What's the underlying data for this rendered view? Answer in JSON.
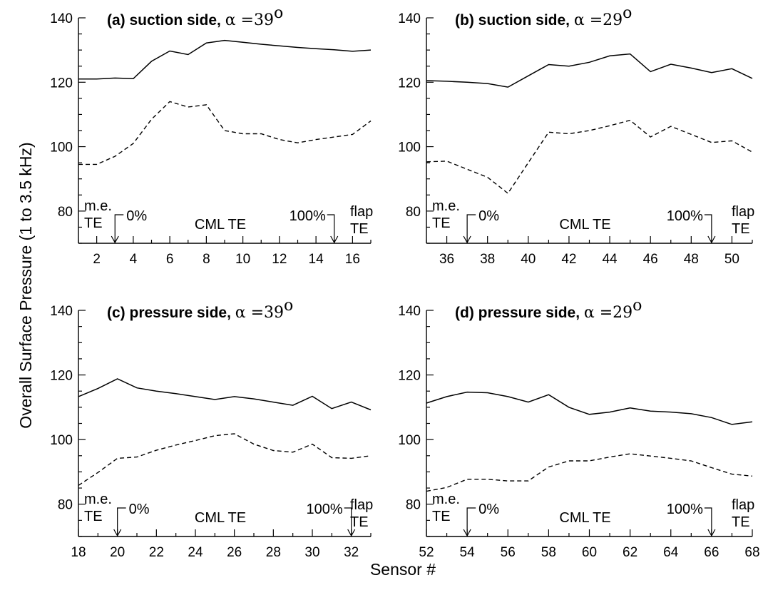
{
  "figure": {
    "ylabel": "Overall Surface Pressure (1 to 3.5 kHz)",
    "xlabel": "Sensor #"
  },
  "chart_data": [
    {
      "type": "line",
      "title": "(a) suction side, α =39°",
      "title_text": "(a) suction side, ",
      "alpha": "39",
      "xlim": [
        1,
        17
      ],
      "ylim": [
        70,
        140
      ],
      "xticks": [
        2,
        4,
        6,
        8,
        10,
        12,
        14,
        16
      ],
      "yticks": [
        80,
        100,
        120,
        140
      ],
      "series": [
        {
          "style": "solid",
          "x": [
            1,
            2,
            3,
            4,
            5,
            6,
            7,
            8,
            9,
            10,
            11,
            12,
            13,
            14,
            15,
            16,
            17
          ],
          "y": [
            121,
            121,
            121.3,
            121.1,
            126.5,
            129.7,
            128.6,
            132.2,
            133.0,
            132.4,
            131.8,
            131.3,
            130.8,
            130.4,
            130.1,
            129.6,
            130.0
          ]
        },
        {
          "style": "dashed",
          "x": [
            1,
            2,
            3,
            4,
            5,
            6,
            7,
            8,
            9,
            10,
            11,
            12,
            13,
            14,
            15,
            16,
            17
          ],
          "y": [
            94.5,
            94.5,
            97.0,
            101.0,
            108.5,
            114.0,
            112.3,
            113.0,
            105.0,
            104.0,
            104.0,
            102.2,
            101.2,
            102.2,
            103.0,
            103.8,
            108.0
          ]
        }
      ],
      "annotations": {
        "me": "m.e.",
        "te": "TE",
        "zero": "0%",
        "cml": "CML TE",
        "hundred": "100%",
        "flap": "flap",
        "flap_te": "TE"
      },
      "marker_x": [
        3,
        15
      ]
    },
    {
      "type": "line",
      "title": "(b) suction side, α =29°",
      "title_text": "(b) suction side, ",
      "alpha": "29",
      "xlim": [
        35,
        51
      ],
      "ylim": [
        70,
        140
      ],
      "xticks": [
        36,
        38,
        40,
        42,
        44,
        46,
        48,
        50
      ],
      "yticks": [
        80,
        100,
        120,
        140
      ],
      "series": [
        {
          "style": "solid",
          "x": [
            35,
            36,
            37,
            38,
            39,
            40,
            41,
            42,
            43,
            44,
            45,
            46,
            47,
            48,
            49,
            50,
            51
          ],
          "y": [
            120.5,
            120.3,
            120.0,
            119.6,
            118.5,
            122.0,
            125.5,
            125.0,
            126.2,
            128.2,
            128.8,
            123.3,
            125.6,
            124.4,
            123.0,
            124.2,
            121.2
          ]
        },
        {
          "style": "dashed",
          "x": [
            35,
            36,
            37,
            38,
            39,
            40,
            41,
            42,
            43,
            44,
            45,
            46,
            47,
            48,
            49,
            50,
            51
          ],
          "y": [
            95.3,
            95.5,
            93.0,
            90.5,
            85.5,
            95.0,
            104.5,
            104.0,
            105.0,
            106.5,
            108.2,
            103.0,
            106.3,
            103.8,
            101.3,
            101.8,
            98.3
          ]
        }
      ],
      "annotations": {
        "me": "m.e.",
        "te": "TE",
        "zero": "0%",
        "cml": "CML TE",
        "hundred": "100%",
        "flap": "flap",
        "flap_te": "TE"
      },
      "marker_x": [
        37,
        49
      ]
    },
    {
      "type": "line",
      "title": "(c) pressure side, α =39°",
      "title_text": "(c) pressure side, ",
      "alpha": "39",
      "xlim": [
        18,
        33
      ],
      "ylim": [
        70,
        140
      ],
      "xticks": [
        18,
        20,
        22,
        24,
        26,
        28,
        30,
        32
      ],
      "yticks": [
        80,
        100,
        120,
        140
      ],
      "series": [
        {
          "style": "solid",
          "x": [
            18,
            19,
            20,
            21,
            22,
            23,
            24,
            25,
            26,
            27,
            28,
            29,
            30,
            31,
            32,
            33
          ],
          "y": [
            113.3,
            115.8,
            118.8,
            116.0,
            115.0,
            114.2,
            113.3,
            112.4,
            113.3,
            112.6,
            111.6,
            110.6,
            113.4,
            109.6,
            111.6,
            109.2
          ]
        },
        {
          "style": "dashed",
          "x": [
            18,
            19,
            20,
            21,
            22,
            23,
            24,
            25,
            26,
            27,
            28,
            29,
            30,
            31,
            32,
            33
          ],
          "y": [
            85.8,
            89.8,
            94.2,
            94.6,
            96.7,
            98.3,
            99.7,
            101.2,
            101.8,
            98.6,
            96.6,
            96.1,
            98.6,
            94.4,
            94.2,
            95.0
          ]
        }
      ],
      "annotations": {
        "me": "m.e.",
        "te": "TE",
        "zero": "0%",
        "cml": "CML TE",
        "hundred": "100%",
        "flap": "flap",
        "flap_te": "TE"
      },
      "marker_x": [
        20,
        32
      ]
    },
    {
      "type": "line",
      "title": "(d) pressure side, α =29°",
      "title_text": "(d) pressure side, ",
      "alpha": "29",
      "xlim": [
        52,
        68
      ],
      "ylim": [
        70,
        140
      ],
      "xticks": [
        52,
        54,
        56,
        58,
        60,
        62,
        64,
        66,
        68
      ],
      "yticks": [
        80,
        100,
        120,
        140
      ],
      "series": [
        {
          "style": "solid",
          "x": [
            52,
            53,
            54,
            55,
            56,
            57,
            58,
            59,
            60,
            61,
            62,
            63,
            64,
            65,
            66,
            67,
            68
          ],
          "y": [
            111.3,
            113.3,
            114.7,
            114.5,
            113.3,
            111.6,
            113.9,
            110.0,
            107.8,
            108.5,
            109.8,
            108.8,
            108.5,
            108.0,
            106.8,
            104.7,
            105.5
          ]
        },
        {
          "style": "dashed",
          "x": [
            52,
            53,
            54,
            55,
            56,
            57,
            58,
            59,
            60,
            61,
            62,
            63,
            64,
            65,
            66,
            67,
            68
          ],
          "y": [
            84.0,
            85.2,
            87.7,
            87.7,
            87.2,
            87.2,
            91.5,
            93.4,
            93.4,
            94.6,
            95.6,
            94.9,
            94.2,
            93.4,
            91.3,
            89.3,
            88.7
          ]
        }
      ],
      "annotations": {
        "me": "m.e.",
        "te": "TE",
        "zero": "0%",
        "cml": "CML TE",
        "hundred": "100%",
        "flap": "flap",
        "flap_te": "TE"
      },
      "marker_x": [
        54,
        66
      ]
    }
  ]
}
